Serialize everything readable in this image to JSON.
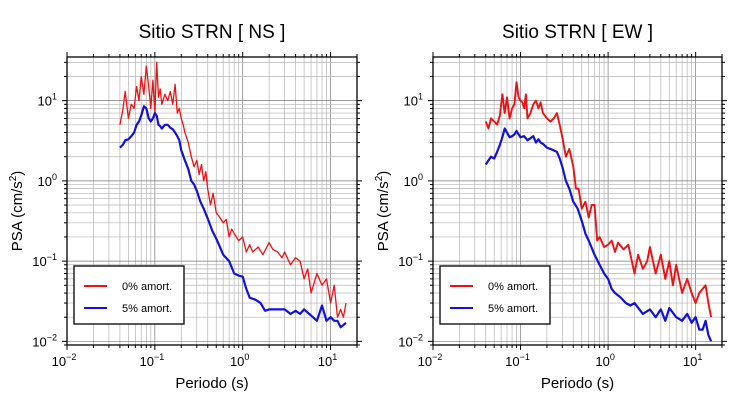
{
  "chart_data": [
    {
      "type": "line",
      "title": "Sitio STRN [ NS ]",
      "xlabel": "Periodo (s)",
      "ylabel_base": "PSA (cm/s",
      "ylabel_exp": "2",
      "ylabel_close": ")",
      "xscale": "log",
      "yscale": "log",
      "xlim": [
        0.01,
        20
      ],
      "ylim": [
        0.009,
        35
      ],
      "grid": true,
      "legend_position": "bottom-left",
      "x_ticks": [
        {
          "base": "10",
          "exp": "−2",
          "value": 0.01
        },
        {
          "base": "10",
          "exp": "−1",
          "value": 0.1
        },
        {
          "base": "10",
          "exp": "0",
          "value": 1
        },
        {
          "base": "10",
          "exp": "1",
          "value": 10
        }
      ],
      "y_ticks": [
        {
          "base": "10",
          "exp": "−2",
          "value": 0.01
        },
        {
          "base": "10",
          "exp": "−1",
          "value": 0.1
        },
        {
          "base": "10",
          "exp": "0",
          "value": 1
        },
        {
          "base": "10",
          "exp": "1",
          "value": 10
        }
      ],
      "series": [
        {
          "name": "0% amort.",
          "color": "#ee1111",
          "x": [
            0.04,
            0.043,
            0.046,
            0.05,
            0.054,
            0.058,
            0.062,
            0.066,
            0.07,
            0.075,
            0.08,
            0.085,
            0.09,
            0.095,
            0.1,
            0.105,
            0.11,
            0.115,
            0.12,
            0.13,
            0.14,
            0.15,
            0.16,
            0.17,
            0.18,
            0.19,
            0.2,
            0.21,
            0.22,
            0.24,
            0.26,
            0.28,
            0.3,
            0.32,
            0.34,
            0.36,
            0.38,
            0.4,
            0.43,
            0.46,
            0.5,
            0.55,
            0.6,
            0.65,
            0.7,
            0.75,
            0.8,
            0.9,
            1.0,
            1.1,
            1.2,
            1.3,
            1.5,
            1.7,
            2.0,
            2.2,
            2.5,
            2.8,
            3.0,
            3.5,
            4.0,
            4.5,
            5.0,
            5.5,
            6.0,
            7.0,
            8.0,
            9.0,
            10.0,
            11.0,
            12.0,
            13.0,
            14.0,
            15.0
          ],
          "y": [
            5.0,
            7.5,
            13,
            6,
            9,
            8,
            15,
            10,
            20,
            12,
            27,
            15,
            8,
            18,
            7,
            30,
            11,
            14,
            9,
            12,
            10,
            13,
            9,
            16,
            7,
            8,
            6,
            5,
            4,
            3,
            2,
            1.5,
            1.8,
            1.2,
            1.6,
            1.0,
            1.3,
            0.8,
            0.5,
            0.7,
            0.4,
            0.35,
            0.3,
            0.33,
            0.2,
            0.25,
            0.22,
            0.18,
            0.2,
            0.13,
            0.16,
            0.13,
            0.15,
            0.12,
            0.17,
            0.14,
            0.13,
            0.11,
            0.13,
            0.09,
            0.11,
            0.1,
            0.06,
            0.08,
            0.04,
            0.07,
            0.05,
            0.06,
            0.03,
            0.05,
            0.02,
            0.025,
            0.02,
            0.03
          ]
        },
        {
          "name": "5% amort.",
          "color": "#1111dd",
          "x": [
            0.04,
            0.043,
            0.046,
            0.05,
            0.054,
            0.058,
            0.062,
            0.066,
            0.07,
            0.075,
            0.08,
            0.085,
            0.09,
            0.095,
            0.1,
            0.105,
            0.11,
            0.115,
            0.12,
            0.13,
            0.14,
            0.15,
            0.16,
            0.17,
            0.18,
            0.19,
            0.2,
            0.22,
            0.24,
            0.26,
            0.28,
            0.3,
            0.33,
            0.36,
            0.4,
            0.45,
            0.5,
            0.55,
            0.6,
            0.7,
            0.8,
            0.9,
            1.0,
            1.1,
            1.2,
            1.4,
            1.6,
            1.8,
            2.0,
            2.5,
            3.0,
            3.5,
            4.0,
            4.5,
            5.0,
            6.0,
            7.0,
            8.0,
            9.0,
            10.0,
            11.0,
            12.0,
            13.0,
            14.0,
            15.0
          ],
          "y": [
            2.6,
            2.8,
            3.2,
            3.3,
            3.6,
            4.0,
            5.0,
            5.5,
            6.5,
            8.5,
            8.0,
            6.0,
            5.5,
            6.0,
            7.0,
            6.5,
            5.0,
            4.8,
            4.5,
            5.0,
            5.0,
            4.6,
            4.4,
            4.0,
            3.6,
            3.2,
            2.4,
            1.8,
            1.4,
            1.0,
            0.9,
            0.75,
            0.55,
            0.45,
            0.34,
            0.24,
            0.19,
            0.15,
            0.12,
            0.1,
            0.07,
            0.066,
            0.064,
            0.045,
            0.035,
            0.033,
            0.03,
            0.024,
            0.025,
            0.025,
            0.025,
            0.022,
            0.024,
            0.022,
            0.025,
            0.021,
            0.018,
            0.028,
            0.018,
            0.02,
            0.018,
            0.018,
            0.015,
            0.016,
            0.017
          ]
        }
      ]
    },
    {
      "type": "line",
      "title": "Sitio STRN [ EW ]",
      "xlabel": "Periodo (s)",
      "ylabel_base": "PSA (cm/s",
      "ylabel_exp": "2",
      "ylabel_close": ")",
      "xscale": "log",
      "yscale": "log",
      "xlim": [
        0.01,
        20
      ],
      "ylim": [
        0.009,
        35
      ],
      "grid": true,
      "legend_position": "bottom-left",
      "x_ticks": [
        {
          "base": "10",
          "exp": "−2",
          "value": 0.01
        },
        {
          "base": "10",
          "exp": "−1",
          "value": 0.1
        },
        {
          "base": "10",
          "exp": "0",
          "value": 1
        },
        {
          "base": "10",
          "exp": "1",
          "value": 10
        }
      ],
      "y_ticks": [
        {
          "base": "10",
          "exp": "−2",
          "value": 0.01
        },
        {
          "base": "10",
          "exp": "−1",
          "value": 0.1
        },
        {
          "base": "10",
          "exp": "0",
          "value": 1
        },
        {
          "base": "10",
          "exp": "1",
          "value": 10
        }
      ],
      "series": [
        {
          "name": "0% amort.",
          "color": "#ee1111",
          "x": [
            0.04,
            0.043,
            0.046,
            0.05,
            0.054,
            0.058,
            0.062,
            0.066,
            0.07,
            0.075,
            0.08,
            0.085,
            0.09,
            0.095,
            0.1,
            0.105,
            0.11,
            0.115,
            0.12,
            0.13,
            0.14,
            0.15,
            0.16,
            0.17,
            0.18,
            0.2,
            0.22,
            0.24,
            0.26,
            0.28,
            0.3,
            0.33,
            0.36,
            0.4,
            0.43,
            0.46,
            0.5,
            0.55,
            0.6,
            0.65,
            0.7,
            0.75,
            0.8,
            0.9,
            1.0,
            1.1,
            1.2,
            1.3,
            1.5,
            1.7,
            2.0,
            2.2,
            2.5,
            2.8,
            3.0,
            3.5,
            4.0,
            4.5,
            5.0,
            5.5,
            6.0,
            7.0,
            8.0,
            9.0,
            10.0,
            11.0,
            12.0,
            13.0,
            14.0,
            15.0
          ],
          "y": [
            5.5,
            4.5,
            6,
            5.5,
            5,
            6.5,
            12,
            7,
            11,
            6,
            8,
            9,
            17,
            11,
            10,
            9.5,
            8,
            12,
            6,
            7,
            9,
            10,
            8,
            9.5,
            7,
            6,
            5.5,
            6,
            7,
            5,
            3.5,
            2.0,
            2.5,
            1.5,
            0.8,
            0.8,
            0.45,
            0.55,
            0.35,
            0.5,
            0.5,
            0.18,
            0.2,
            0.15,
            0.16,
            0.18,
            0.13,
            0.17,
            0.14,
            0.16,
            0.07,
            0.12,
            0.08,
            0.1,
            0.15,
            0.07,
            0.12,
            0.06,
            0.1,
            0.05,
            0.09,
            0.04,
            0.06,
            0.04,
            0.03,
            0.04,
            0.045,
            0.05,
            0.03,
            0.02
          ]
        },
        {
          "name": "5% amort.",
          "color": "#1111dd",
          "x": [
            0.04,
            0.043,
            0.046,
            0.05,
            0.054,
            0.058,
            0.062,
            0.066,
            0.07,
            0.075,
            0.08,
            0.085,
            0.09,
            0.095,
            0.1,
            0.11,
            0.12,
            0.13,
            0.14,
            0.15,
            0.16,
            0.17,
            0.18,
            0.2,
            0.22,
            0.24,
            0.26,
            0.28,
            0.3,
            0.33,
            0.36,
            0.4,
            0.45,
            0.5,
            0.55,
            0.6,
            0.7,
            0.8,
            0.9,
            1.0,
            1.1,
            1.2,
            1.4,
            1.6,
            1.8,
            2.0,
            2.5,
            3.0,
            3.5,
            4.0,
            4.5,
            5.0,
            6.0,
            7.0,
            8.0,
            9.0,
            10.0,
            11.0,
            12.0,
            13.0,
            14.0,
            15.0
          ],
          "y": [
            1.6,
            1.8,
            2.0,
            1.9,
            2.3,
            2.8,
            3.5,
            4.5,
            4.0,
            3.5,
            3.6,
            3.8,
            4.2,
            3.8,
            3.5,
            3.6,
            3.2,
            3.4,
            3.6,
            3.0,
            3.3,
            3.0,
            2.9,
            2.6,
            2.5,
            2.4,
            2.3,
            1.9,
            1.5,
            1.0,
            0.8,
            0.55,
            0.45,
            0.32,
            0.22,
            0.18,
            0.12,
            0.09,
            0.07,
            0.06,
            0.045,
            0.04,
            0.035,
            0.03,
            0.028,
            0.03,
            0.022,
            0.025,
            0.02,
            0.025,
            0.018,
            0.026,
            0.02,
            0.018,
            0.022,
            0.017,
            0.02,
            0.014,
            0.014,
            0.018,
            0.012,
            0.01
          ]
        }
      ]
    }
  ]
}
